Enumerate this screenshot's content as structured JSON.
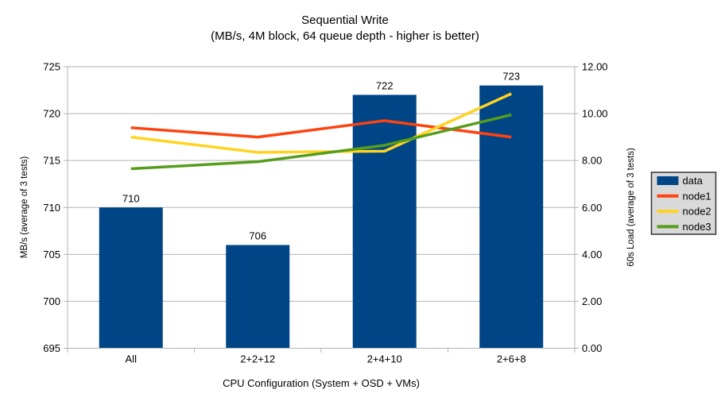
{
  "chart_data": {
    "type": "combo-bar-line",
    "title": "Sequential Write",
    "subtitle": "(MB/s, 4M block, 64 queue depth - higher is better)",
    "categories": [
      "All",
      "2+2+12",
      "2+4+10",
      "2+6+8"
    ],
    "bar_series": {
      "name": "data",
      "color": "#004586",
      "axis": "left",
      "values": [
        710,
        706,
        722,
        723
      ],
      "data_labels": [
        "710",
        "706",
        "722",
        "723"
      ]
    },
    "line_series": [
      {
        "name": "node1",
        "color": "#ff420e",
        "axis": "right",
        "values": [
          9.4,
          9.0,
          9.7,
          9.0
        ]
      },
      {
        "name": "node2",
        "color": "#ffd320",
        "axis": "right",
        "values": [
          9.0,
          8.35,
          8.4,
          10.85
        ]
      },
      {
        "name": "node3",
        "color": "#579d1c",
        "axis": "right",
        "values": [
          7.65,
          7.95,
          8.65,
          9.95
        ]
      }
    ],
    "left_axis": {
      "title": "MB/s (average of 3 tests)",
      "min": 695,
      "max": 725,
      "step": 5,
      "tick_labels": [
        "695",
        "700",
        "705",
        "710",
        "715",
        "720",
        "725"
      ]
    },
    "right_axis": {
      "title": "60s Load (average of 3 tests)",
      "min": 0,
      "max": 12,
      "step": 2,
      "tick_labels": [
        "0.00",
        "2.00",
        "4.00",
        "6.00",
        "8.00",
        "10.00",
        "12.00"
      ]
    },
    "x_axis": {
      "title": "CPU Configuration (System + OSD + VMs)"
    },
    "legend": {
      "position": "right",
      "background": "#d9d9d9",
      "border_color": "#333333",
      "entries": [
        {
          "label": "data",
          "color": "#004586",
          "swatch": "rect"
        },
        {
          "label": "node1",
          "color": "#ff420e",
          "swatch": "line"
        },
        {
          "label": "node2",
          "color": "#ffd320",
          "swatch": "line"
        },
        {
          "label": "node3",
          "color": "#579d1c",
          "swatch": "line"
        }
      ]
    },
    "grid": {
      "horizontal": true,
      "vertical": false,
      "color": "#b3b3b3"
    },
    "axis_color": "#b3b3b3",
    "text_color": "#000000",
    "background": "#ffffff"
  }
}
